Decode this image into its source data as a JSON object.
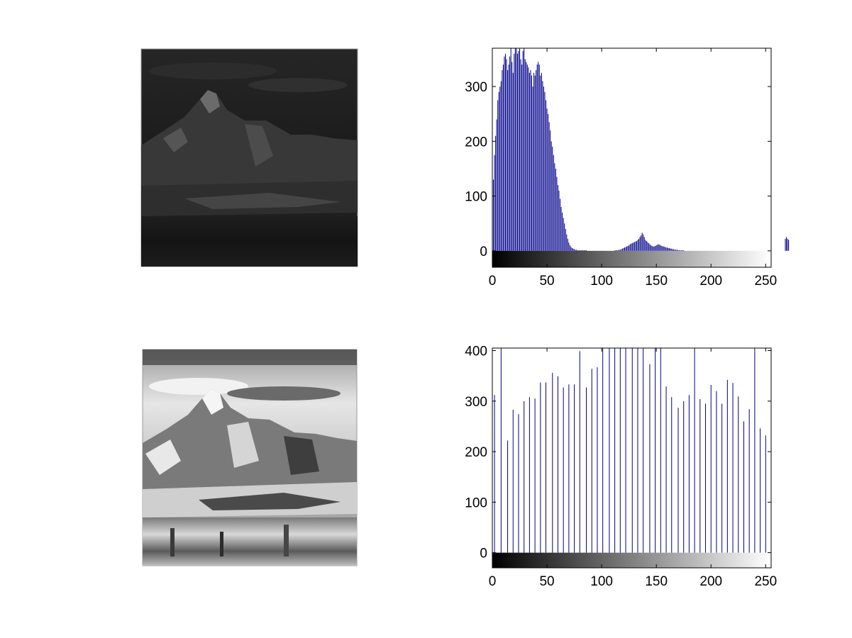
{
  "figure": {
    "background": "#ffffff",
    "bar_color": "#00008b"
  },
  "chart_data": [
    {
      "type": "image",
      "subplot": "top-left",
      "content": "grayscale mountain landscape photo, dark / low contrast"
    },
    {
      "type": "bar",
      "subplot": "top-right",
      "title": "",
      "xlabel": "",
      "ylabel": "",
      "xlim": [
        0,
        255
      ],
      "ylim": [
        -30,
        370
      ],
      "xticks": [
        "0",
        "50",
        "100",
        "150",
        "200",
        "250"
      ],
      "yticks": [
        "0",
        "100",
        "200",
        "300"
      ],
      "grayscale_colorbar": true,
      "series": [
        {
          "values": [
            50,
            130,
            175,
            210,
            240,
            275,
            290,
            300,
            310,
            330,
            340,
            355,
            360,
            350,
            330,
            340,
            355,
            370,
            345,
            325,
            360,
            370,
            370,
            360,
            365,
            370,
            350,
            340,
            365,
            370,
            350,
            345,
            340,
            335,
            325,
            330,
            320,
            300,
            325,
            320,
            330,
            340,
            345,
            340,
            320,
            325,
            310,
            300,
            290,
            275,
            260,
            250,
            235,
            220,
            200,
            190,
            175,
            160,
            150,
            135,
            120,
            110,
            95,
            80,
            70,
            60,
            50,
            40,
            30,
            22,
            15,
            10,
            7,
            5,
            4,
            3,
            2,
            2,
            1,
            1,
            1,
            1,
            1,
            1,
            1,
            1,
            1,
            0,
            0,
            0,
            0,
            0,
            0,
            0,
            0,
            0,
            0,
            0,
            0,
            0,
            0,
            0,
            0,
            0,
            0,
            0,
            0,
            0,
            0,
            0,
            0,
            0,
            1,
            1,
            1,
            1,
            2,
            2,
            3,
            4,
            5,
            6,
            7,
            8,
            9,
            10,
            12,
            13,
            14,
            15,
            16,
            17,
            18,
            20,
            22,
            25,
            28,
            33,
            30,
            25,
            20,
            18,
            16,
            14,
            12,
            10,
            9,
            8,
            8,
            9,
            10,
            11,
            12,
            11,
            10,
            9,
            8,
            8,
            7,
            6,
            6,
            5,
            5,
            4,
            4,
            3,
            3,
            2,
            2,
            2,
            1,
            1,
            1,
            1,
            1,
            1,
            0,
            0,
            0,
            0,
            0,
            0,
            0,
            0,
            0,
            0,
            0,
            0,
            0,
            0,
            0,
            0,
            0,
            0,
            0,
            0,
            0,
            0,
            0,
            0,
            0,
            0,
            0,
            0,
            0,
            0,
            0,
            0,
            0,
            0,
            0,
            0,
            0,
            0,
            0,
            0,
            0,
            0,
            0,
            0,
            0,
            0,
            0,
            0,
            0,
            0,
            0,
            0,
            0,
            0,
            0,
            0,
            0,
            0,
            0,
            0,
            0,
            0,
            0,
            0,
            0,
            0,
            0,
            0,
            0,
            0,
            0,
            0,
            0,
            0,
            0,
            0,
            0,
            0,
            0,
            0,
            0,
            0,
            0,
            0,
            0,
            0,
            0,
            0,
            0,
            0,
            0,
            0,
            22,
            25,
            22,
            20
          ]
        }
      ]
    },
    {
      "type": "image",
      "subplot": "bottom-left",
      "content": "grayscale mountain landscape photo, histogram-equalized / high contrast"
    },
    {
      "type": "bar",
      "subplot": "bottom-right",
      "title": "",
      "xlabel": "",
      "ylabel": "",
      "xlim": [
        0,
        255
      ],
      "ylim": [
        -30,
        405
      ],
      "xticks": [
        "0",
        "50",
        "100",
        "150",
        "200",
        "250"
      ],
      "yticks": [
        "0",
        "100",
        "200",
        "300",
        "400"
      ],
      "grayscale_colorbar": true,
      "series": [
        {
          "x": [
            2,
            8,
            14,
            19,
            24,
            29,
            34,
            39,
            44,
            49,
            55,
            60,
            65,
            70,
            75,
            80,
            86,
            91,
            96,
            101,
            107,
            112,
            117,
            122,
            128,
            133,
            138,
            144,
            149,
            154,
            159,
            164,
            170,
            175,
            180,
            185,
            190,
            195,
            200,
            205,
            210,
            215,
            220,
            225,
            230,
            235,
            240,
            245,
            250,
            255
          ],
          "values": [
            312,
            405,
            222,
            283,
            274,
            300,
            308,
            305,
            337,
            337,
            356,
            349,
            327,
            333,
            333,
            399,
            327,
            364,
            367,
            405,
            405,
            405,
            405,
            405,
            405,
            405,
            405,
            373,
            405,
            405,
            329,
            308,
            287,
            300,
            312,
            405,
            304,
            295,
            332,
            320,
            295,
            342,
            336,
            309,
            260,
            284,
            405,
            246,
            232,
            333
          ]
        }
      ]
    }
  ]
}
